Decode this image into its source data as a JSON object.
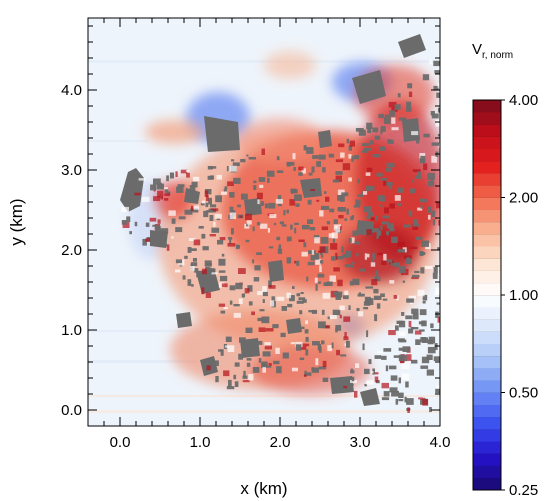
{
  "chart_data": {
    "type": "heatmap",
    "xlabel": "x (km)",
    "ylabel": "y (km)",
    "xlim": [
      -0.4,
      4.0
    ],
    "ylim": [
      -0.2,
      4.9
    ],
    "x_ticks": [
      0.0,
      1.0,
      2.0,
      3.0,
      4.0
    ],
    "x_tick_labels": [
      "0.0",
      "1.0",
      "2.0",
      "3.0",
      "4.0"
    ],
    "y_ticks": [
      0.0,
      1.0,
      2.0,
      3.0,
      4.0
    ],
    "y_tick_labels": [
      "0.0",
      "1.0",
      "2.0",
      "3.0",
      "4.0"
    ],
    "colorbar": {
      "label_main": "V",
      "label_sub": "r, norm",
      "scale": "log",
      "range": [
        0.25,
        4.0
      ],
      "ticks": [
        0.25,
        0.5,
        1.0,
        2.0,
        4.0
      ],
      "tick_labels": [
        "0.25",
        "0.50",
        "1.00",
        "2.00",
        "4.00"
      ],
      "colors_low_to_high": [
        "#1a0a6e",
        "#2411c8",
        "#3a4ff0",
        "#6c8df5",
        "#a9c4f7",
        "#dbe8fb",
        "#ffffff",
        "#fde4d2",
        "#f9b392",
        "#f26a4f",
        "#e21d1d",
        "#c00e1a",
        "#7a0d1c"
      ]
    },
    "field_description_colors": {
      "background": "#eef4fb",
      "buildings": "#6b6b6b"
    }
  }
}
